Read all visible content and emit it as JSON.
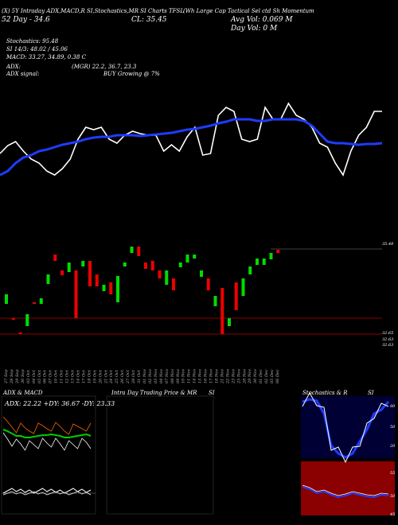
{
  "header": {
    "line1": "(X) 5Y Intraday ADX,MACD,R SI,Stochastics,MR SI Charts TFSL",
    "line2_left": "52 Day - 34.6",
    "line2_mid": "CL: 35.45",
    "line2_right": "Avg Vol: 0.069 M",
    "line3_right": "Day Vol: 0   M",
    "fund_name": "(Wh  Large  Cap Tactical Sel ctd Sh Momentum"
  },
  "info": {
    "stoch": "Stochastics: 95.48",
    "rsi": "SI 14/3: 48.02 / 45.06",
    "macd": "MACD: 33.27,  34.89,  0.38  C",
    "adx": "ADX:",
    "mgr": "(MGR) 22.2,  36.7,  23.3",
    "adx_signal": "ADX  signal:",
    "buy": "BUY Growing @ 7%"
  },
  "price_labels": {
    "top": "35.48",
    "bottom1": "32.65",
    "bottom2": "32.63",
    "bottom3": "32.63"
  },
  "dates": [
    "27 Sep",
    "28 Sep",
    "29 Sep",
    "30 Sep",
    "03 Oct",
    "04 Oct",
    "05 Oct",
    "06 Oct",
    "07 Oct",
    "10 Oct",
    "11 Oct",
    "12 Oct",
    "13 Oct",
    "14 Oct",
    "17 Oct",
    "18 Oct",
    "19 Oct",
    "20 Oct",
    "21 Oct",
    "24 Oct",
    "25 Oct",
    "26 Oct",
    "27 Oct",
    "28 Oct",
    "31 Oct",
    "01 Nov",
    "02 Nov",
    "03 Nov",
    "04 Nov",
    "07 Nov",
    "08 Nov",
    "09 Nov",
    "10 Nov",
    "11 Nov",
    "14 Nov",
    "15 Nov",
    "16 Nov",
    "17 Nov",
    "18 Nov",
    "21 Nov",
    "22 Nov",
    "23 Nov",
    "25 Nov",
    "28 Nov",
    "29 Nov",
    "30 Nov",
    "01 Dec",
    "02 Dec",
    "05 Dec",
    "06 Dec"
  ],
  "panels": {
    "adx_title": "ADX  & MACD",
    "adx_values": "ADX: 22.22  +DY: 36.67 -DY: 23.33",
    "mrsi_title": "Intra  Day Trading Price  & MR",
    "mrsi_si": "SI",
    "stoch_title": "Stochastics & R",
    "stoch_si": "SI",
    "stoch_axis": [
      "80",
      "50",
      "20"
    ],
    "rsi_axis": [
      "55",
      "50",
      "45"
    ],
    "stoch_val": "95.48",
    "rsi_val": "48.02"
  },
  "chart_data": {
    "type": "line",
    "title": "",
    "series": [
      {
        "name": "price",
        "color": "#ffffff",
        "values": [
          193,
          183,
          178,
          190,
          200,
          205,
          215,
          220,
          212,
          200,
          175,
          160,
          163,
          160,
          175,
          180,
          170,
          165,
          168,
          170,
          170,
          190,
          182,
          190,
          172,
          160,
          195,
          193,
          145,
          135,
          140,
          175,
          178,
          175,
          135,
          150,
          150,
          130,
          145,
          150,
          160,
          180,
          185,
          205,
          220,
          190,
          170,
          160,
          140,
          140
        ]
      },
      {
        "name": "average",
        "color": "#1e3cff",
        "values": [
          220,
          215,
          205,
          198,
          195,
          190,
          188,
          185,
          182,
          180,
          178,
          175,
          173,
          172,
          172,
          170,
          170,
          170,
          171,
          170,
          169,
          168,
          167,
          165,
          163,
          162,
          160,
          158,
          155,
          153,
          150,
          150,
          150,
          152,
          152,
          150,
          150,
          150,
          150,
          152,
          158,
          168,
          178,
          180,
          180,
          181,
          182,
          181,
          181,
          180
        ]
      }
    ],
    "candles": [
      {
        "o": 370,
        "c": 382,
        "col": "g"
      },
      {
        "o": 400,
        "c": 402,
        "col": "r"
      },
      {
        "o": 420,
        "c": 418,
        "col": "r"
      },
      {
        "o": 395,
        "c": 410,
        "col": "g"
      },
      {
        "o": 382,
        "c": 380,
        "col": "r"
      },
      {
        "o": 375,
        "c": 382,
        "col": "g"
      },
      {
        "o": 345,
        "c": 357,
        "col": "g"
      },
      {
        "o": 320,
        "c": 328,
        "col": "r"
      },
      {
        "o": 340,
        "c": 346,
        "col": "r"
      },
      {
        "o": 330,
        "c": 342,
        "col": "g"
      },
      {
        "o": 340,
        "c": 400,
        "col": "r"
      },
      {
        "o": 335,
        "c": 328,
        "col": "g"
      },
      {
        "o": 328,
        "c": 360,
        "col": "r"
      },
      {
        "o": 345,
        "c": 360,
        "col": "r"
      },
      {
        "o": 358,
        "c": 366,
        "col": "g"
      },
      {
        "o": 355,
        "c": 370,
        "col": "r"
      },
      {
        "o": 347,
        "c": 380,
        "col": "g"
      },
      {
        "o": 330,
        "c": 335,
        "col": "g"
      },
      {
        "o": 310,
        "c": 318,
        "col": "g"
      },
      {
        "o": 310,
        "c": 322,
        "col": "r"
      },
      {
        "o": 330,
        "c": 338,
        "col": "r"
      },
      {
        "o": 328,
        "c": 340,
        "col": "r"
      },
      {
        "o": 340,
        "c": 350,
        "col": "r"
      },
      {
        "o": 340,
        "c": 358,
        "col": "g"
      },
      {
        "o": 350,
        "c": 365,
        "col": "r"
      },
      {
        "o": 330,
        "c": 336,
        "col": "g"
      },
      {
        "o": 320,
        "c": 330,
        "col": "g"
      },
      {
        "o": 320,
        "c": 325,
        "col": "g"
      },
      {
        "o": 340,
        "c": 348,
        "col": "g"
      },
      {
        "o": 350,
        "c": 365,
        "col": "r"
      },
      {
        "o": 372,
        "c": 385,
        "col": "g"
      },
      {
        "o": 362,
        "c": 420,
        "col": "r"
      },
      {
        "o": 400,
        "c": 410,
        "col": "g"
      },
      {
        "o": 355,
        "c": 390,
        "col": "r"
      },
      {
        "o": 350,
        "c": 372,
        "col": "g"
      },
      {
        "o": 335,
        "c": 345,
        "col": "g"
      },
      {
        "o": 325,
        "c": 333,
        "col": "g"
      },
      {
        "o": 325,
        "c": 333,
        "col": "g"
      },
      {
        "o": 318,
        "c": 326,
        "col": "g"
      },
      {
        "o": 314,
        "c": 318,
        "col": "r"
      }
    ]
  }
}
